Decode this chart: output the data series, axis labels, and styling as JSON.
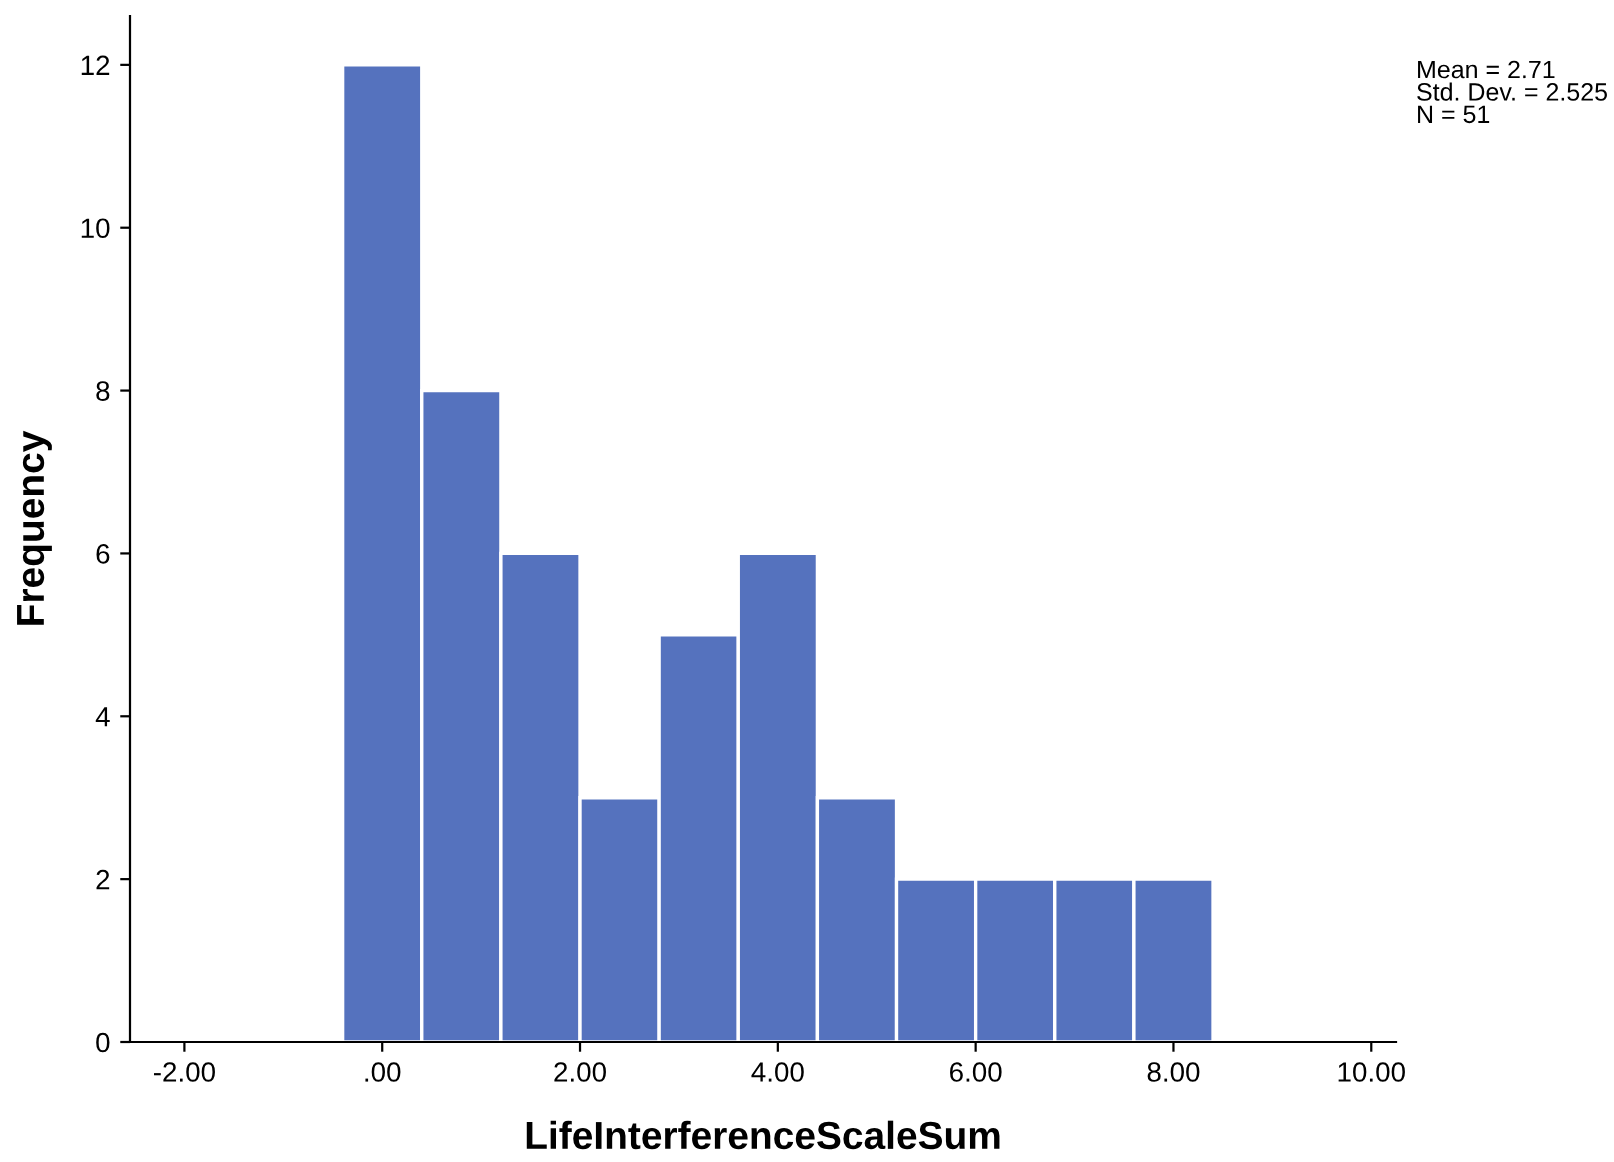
{
  "chart_data": {
    "type": "histogram",
    "xlabel": "LifeInterferenceScaleSum",
    "ylabel": "Frequency",
    "bins": [
      -0.4,
      0.4,
      1.2,
      2.0,
      2.8,
      3.6,
      4.4,
      5.2,
      6.0,
      6.8,
      7.6,
      8.4
    ],
    "values": [
      12,
      8,
      6,
      3,
      5,
      6,
      3,
      2,
      2,
      2,
      2
    ],
    "color": "#5572be",
    "xlim": [
      -2.55,
      10.25
    ],
    "ylim": [
      0,
      12.6
    ],
    "xticks": [
      {
        "value": -2,
        "label": "-2.00"
      },
      {
        "value": 0,
        "label": ".00"
      },
      {
        "value": 2,
        "label": "2.00"
      },
      {
        "value": 4,
        "label": "4.00"
      },
      {
        "value": 6,
        "label": "6.00"
      },
      {
        "value": 8,
        "label": "8.00"
      },
      {
        "value": 10,
        "label": "10.00"
      }
    ],
    "yticks": [
      0,
      2,
      4,
      6,
      8,
      10,
      12
    ],
    "annotations": [
      "Mean = 2.71\nStd. Dev. = 2.525\nN = 51"
    ],
    "grid": false,
    "legend": false
  }
}
